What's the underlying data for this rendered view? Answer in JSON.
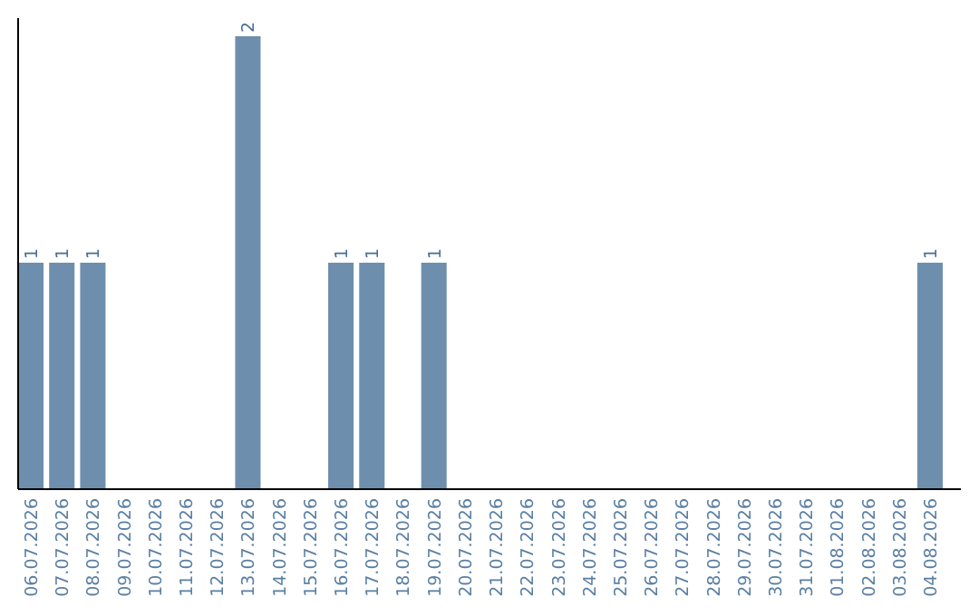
{
  "chart_data": {
    "type": "bar",
    "categories": [
      "06.07.2026",
      "07.07.2026",
      "08.07.2026",
      "09.07.2026",
      "10.07.2026",
      "11.07.2026",
      "12.07.2026",
      "13.07.2026",
      "14.07.2026",
      "15.07.2026",
      "16.07.2026",
      "17.07.2026",
      "18.07.2026",
      "19.07.2026",
      "20.07.2026",
      "21.07.2026",
      "22.07.2026",
      "23.07.2026",
      "24.07.2026",
      "25.07.2026",
      "26.07.2026",
      "27.07.2026",
      "28.07.2026",
      "29.07.2026",
      "30.07.2026",
      "31.07.2026",
      "01.08.2026",
      "02.08.2026",
      "03.08.2026",
      "04.08.2026"
    ],
    "values": [
      1,
      1,
      1,
      0,
      0,
      0,
      0,
      2,
      0,
      0,
      1,
      1,
      0,
      1,
      0,
      0,
      0,
      0,
      0,
      0,
      0,
      0,
      0,
      0,
      0,
      0,
      0,
      0,
      0,
      1
    ],
    "value_labels": [
      "1",
      "1",
      "1",
      null,
      null,
      null,
      null,
      "2",
      null,
      null,
      "1",
      "1",
      null,
      "1",
      null,
      null,
      null,
      null,
      null,
      null,
      null,
      null,
      null,
      null,
      null,
      null,
      null,
      null,
      null,
      "1"
    ],
    "color": "#6d8fad"
  }
}
